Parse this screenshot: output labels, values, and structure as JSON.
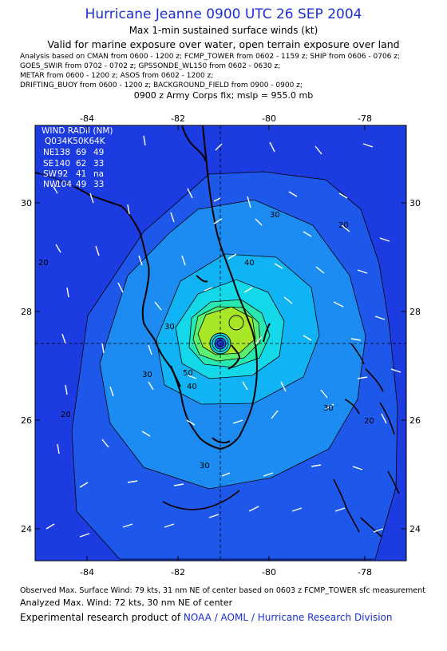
{
  "header": {
    "title": "Hurricane Jeanne 0900 UTC 26 SEP 2004",
    "subtitle": "Max 1-min sustained surface winds (kt)",
    "validity": "Valid for marine exposure over water, open terrain exposure over land",
    "sources": [
      "Analysis based on  CMAN from 0600 - 1200 z;  FCMP_TOWER from 0602 - 1159 z;  SHIP from 0606 - 0706 z;",
      "GOES_SWIR from 0702 - 0702 z;  GPSSONDE_WL150 from 0602 - 0630 z;",
      "METAR from 0600 - 1200 z;  ASOS from 0602 - 1200 z;",
      "DRIFTING_BUOY from 0600 - 1200 z;  BACKGROUND_FIELD from 0900 - 0900 z;"
    ],
    "fix": "0900 z Army Corps fix; mslp = 955.0 mb"
  },
  "map": {
    "lon_ticks": [
      "-84",
      "-82",
      "-80",
      "-78"
    ],
    "lat_ticks": [
      "30",
      "28",
      "26",
      "24"
    ],
    "contour_labels": [
      "20",
      "20",
      "20",
      "20",
      "30",
      "30",
      "30",
      "30",
      "30",
      "40",
      "40",
      "50"
    ],
    "colors": {
      "background": "#1c3be0",
      "c20": "#1e58ea",
      "c30": "#1c8cf2",
      "c40": "#10b4f4",
      "c50": "#12d8ea",
      "c60": "#26e8b0",
      "c64": "#5cf070",
      "c70": "#a8e628",
      "coast": "#000000",
      "wind_barb": "#ffffff"
    }
  },
  "wind_radii": {
    "title": "WIND RADII (NM)",
    "header": "Q034K50K64K",
    "rows": [
      {
        "quad": "NE",
        "r34": "138",
        "r50": "69",
        "r64": "49"
      },
      {
        "quad": "SE",
        "r34": "140",
        "r50": "62",
        "r64": "33"
      },
      {
        "quad": "SW",
        "r34": "92",
        "r50": "41",
        "r64": "na"
      },
      {
        "quad": "NW",
        "r34": "104",
        "r50": "49",
        "r64": "33"
      }
    ]
  },
  "footer": {
    "observed": "Observed Max. Surface Wind: 79 kts, 31 nm NE of center based on 0603 z FCMP_TOWER sfc measurement",
    "analyzed": "Analyzed Max. Wind: 72 kts, 30 nm NE of center",
    "credit_prefix": "Experimental research product of ",
    "credit_org": "NOAA / AOML / Hurricane Research Division"
  }
}
